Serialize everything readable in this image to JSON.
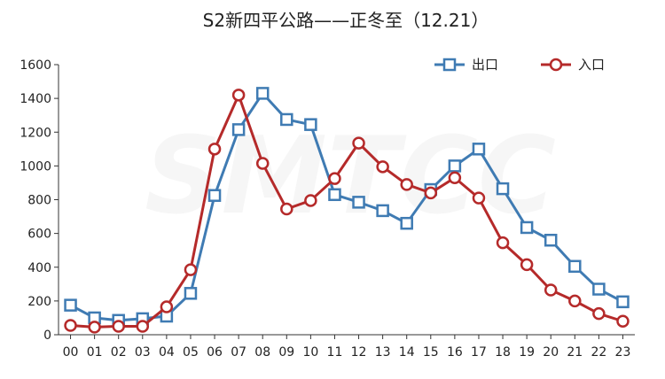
{
  "chart_data": {
    "type": "line",
    "title": "S2新四平公路——正冬至（12.21）",
    "watermark": "SMTCC",
    "xlabel": "",
    "ylabel": "",
    "categories": [
      "00",
      "01",
      "02",
      "03",
      "04",
      "05",
      "06",
      "07",
      "08",
      "09",
      "10",
      "11",
      "12",
      "13",
      "14",
      "15",
      "16",
      "17",
      "18",
      "19",
      "20",
      "21",
      "22",
      "23"
    ],
    "ylim": [
      0,
      1600
    ],
    "yticks": [
      0,
      200,
      400,
      600,
      800,
      1000,
      1200,
      1400,
      1600
    ],
    "grid": "off",
    "legend_position": "top-right",
    "series": [
      {
        "name": "出口",
        "color": "#3f7bb3",
        "marker": "square",
        "values": [
          175,
          100,
          85,
          95,
          110,
          245,
          825,
          1215,
          1430,
          1275,
          1245,
          830,
          785,
          735,
          660,
          860,
          1000,
          1100,
          865,
          635,
          560,
          405,
          270,
          195
        ]
      },
      {
        "name": "入口",
        "color": "#b52a2a",
        "marker": "circle",
        "values": [
          55,
          45,
          50,
          50,
          165,
          385,
          1100,
          1420,
          1015,
          745,
          795,
          925,
          1135,
          995,
          890,
          840,
          930,
          810,
          545,
          415,
          265,
          200,
          125,
          80
        ]
      }
    ]
  }
}
